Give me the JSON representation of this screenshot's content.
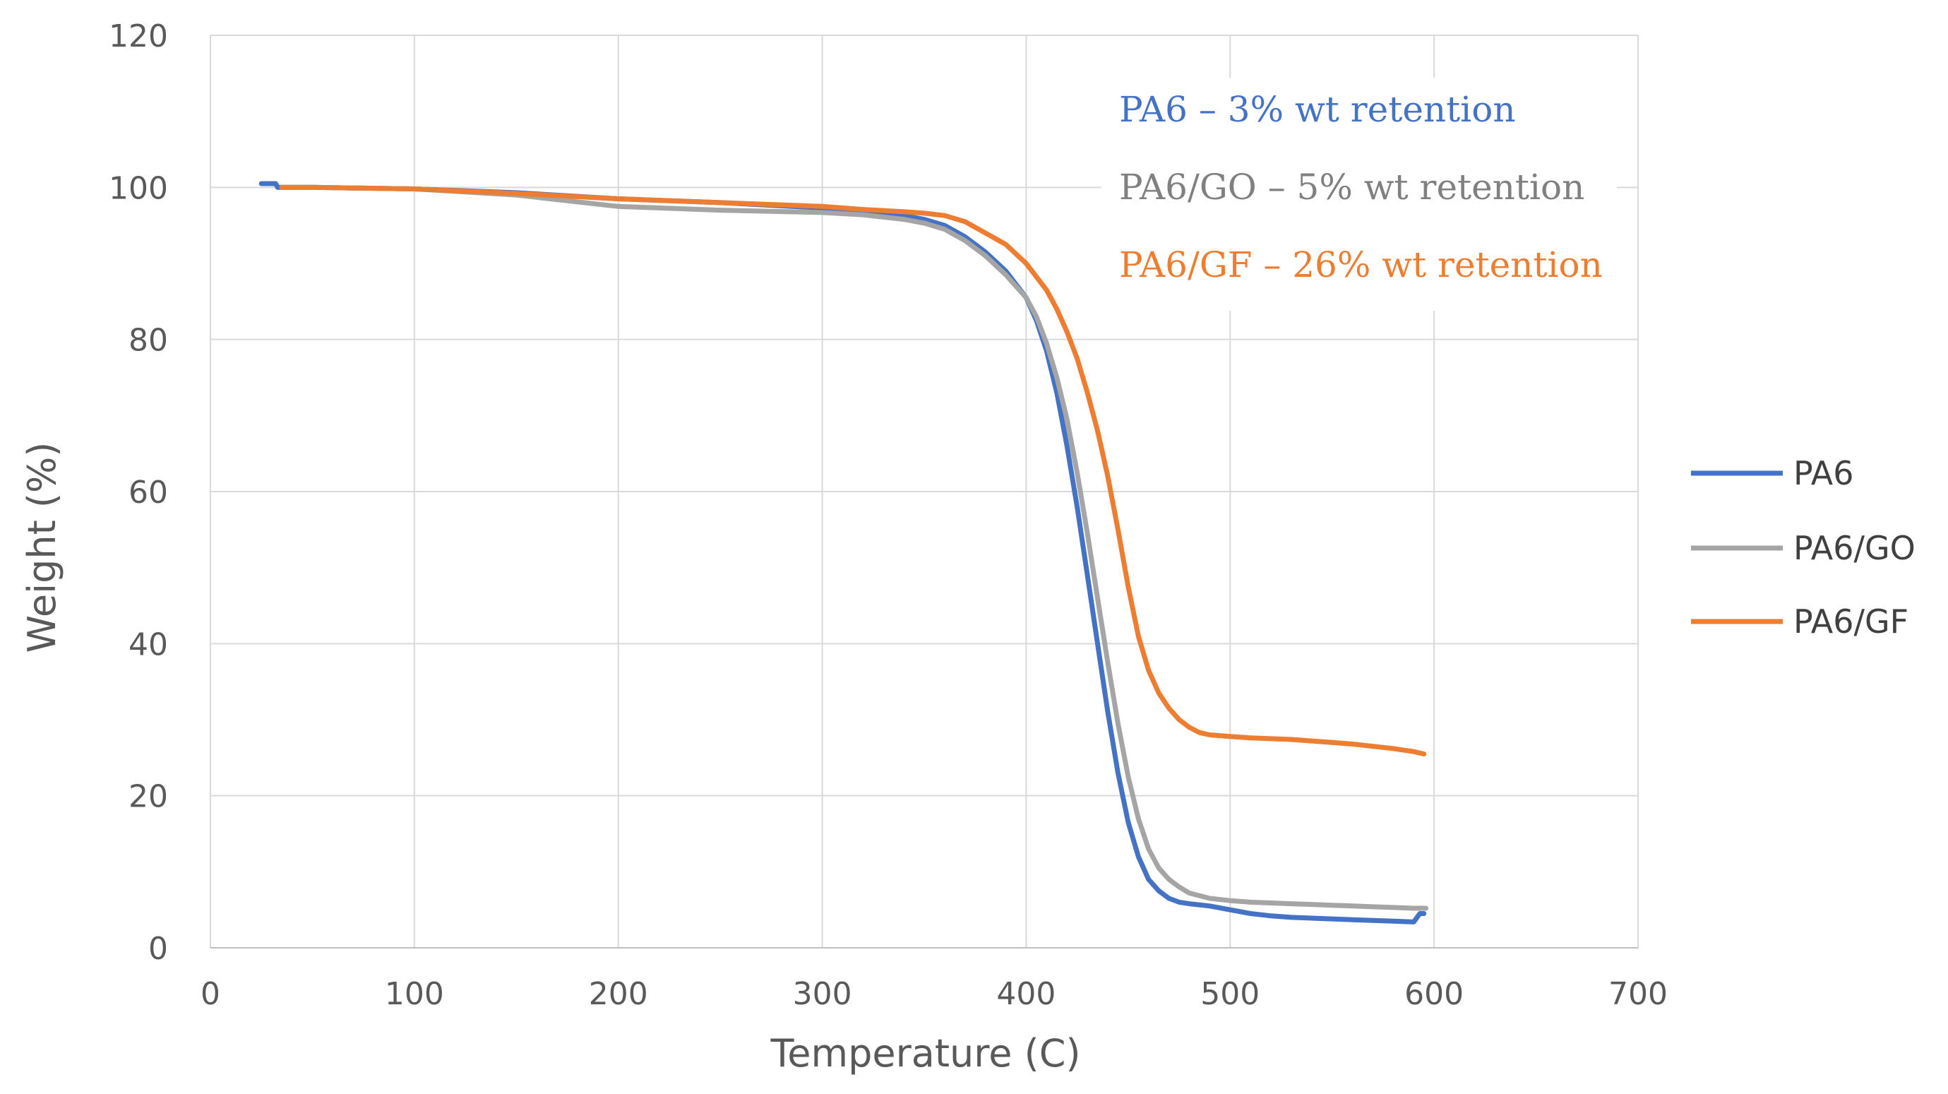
{
  "chart_data": {
    "type": "line",
    "title": "",
    "xlabel": "Temperature (C)",
    "ylabel": "Weight (%)",
    "xlim": [
      0,
      700
    ],
    "ylim": [
      0,
      120
    ],
    "xticks": [
      0,
      100,
      200,
      300,
      400,
      500,
      600,
      700
    ],
    "yticks": [
      0,
      20,
      40,
      60,
      80,
      100,
      120
    ],
    "grid": true,
    "legend_position": "right",
    "series": [
      {
        "name": "PA6",
        "color": "#4472C4",
        "x": [
          25,
          32,
          33,
          50,
          100,
          150,
          200,
          250,
          300,
          320,
          340,
          350,
          360,
          370,
          380,
          390,
          400,
          405,
          410,
          415,
          420,
          425,
          430,
          435,
          440,
          445,
          450,
          455,
          460,
          465,
          470,
          475,
          480,
          490,
          500,
          510,
          520,
          530,
          540,
          550,
          560,
          570,
          580,
          590,
          593,
          595
        ],
        "y": [
          100.5,
          100.5,
          100.0,
          100.0,
          99.8,
          99.3,
          98.5,
          98.0,
          97.3,
          96.8,
          96.3,
          95.8,
          95.0,
          93.5,
          91.5,
          89.0,
          85.5,
          82.5,
          78.5,
          73.0,
          66.0,
          58.0,
          49.0,
          40.0,
          31.0,
          23.0,
          16.5,
          12.0,
          9.0,
          7.5,
          6.5,
          6.0,
          5.8,
          5.5,
          5.0,
          4.5,
          4.2,
          4.0,
          3.9,
          3.8,
          3.7,
          3.6,
          3.5,
          3.4,
          4.5,
          4.5
        ]
      },
      {
        "name": "PA6/GO",
        "color": "#A5A5A5",
        "x": [
          35,
          50,
          100,
          150,
          200,
          250,
          300,
          320,
          340,
          350,
          360,
          370,
          380,
          390,
          400,
          405,
          410,
          415,
          420,
          425,
          430,
          435,
          440,
          445,
          450,
          455,
          460,
          465,
          470,
          475,
          480,
          490,
          500,
          510,
          520,
          530,
          540,
          550,
          560,
          570,
          580,
          590,
          596
        ],
        "y": [
          100.0,
          100.0,
          99.8,
          99.0,
          97.5,
          97.0,
          96.7,
          96.4,
          95.8,
          95.3,
          94.5,
          93.0,
          91.0,
          88.5,
          85.5,
          83.0,
          79.5,
          75.0,
          69.5,
          62.5,
          54.5,
          46.0,
          37.5,
          29.5,
          22.5,
          17.0,
          13.0,
          10.5,
          9.0,
          8.0,
          7.2,
          6.5,
          6.2,
          6.0,
          5.9,
          5.8,
          5.7,
          5.6,
          5.5,
          5.4,
          5.3,
          5.2,
          5.2
        ]
      },
      {
        "name": "PA6/GF",
        "color": "#ED7D31",
        "x": [
          35,
          50,
          100,
          150,
          200,
          250,
          300,
          320,
          340,
          350,
          360,
          370,
          380,
          390,
          400,
          410,
          415,
          420,
          425,
          430,
          435,
          440,
          445,
          450,
          455,
          460,
          465,
          470,
          475,
          480,
          485,
          490,
          500,
          510,
          520,
          530,
          540,
          550,
          560,
          570,
          580,
          590,
          595
        ],
        "y": [
          100.0,
          100.0,
          99.8,
          99.2,
          98.5,
          98.0,
          97.5,
          97.1,
          96.8,
          96.6,
          96.3,
          95.5,
          94.0,
          92.5,
          90.0,
          86.5,
          84.0,
          81.0,
          77.5,
          73.0,
          68.0,
          62.0,
          55.0,
          47.5,
          41.0,
          36.5,
          33.5,
          31.5,
          30.0,
          29.0,
          28.3,
          28.0,
          27.8,
          27.6,
          27.5,
          27.4,
          27.2,
          27.0,
          26.8,
          26.5,
          26.2,
          25.8,
          25.5
        ]
      }
    ],
    "annotations": [
      {
        "text": "PA6 – 3% wt retention",
        "color": "#4472C4"
      },
      {
        "text": "PA6/GO – 5% wt retention",
        "color": "#808080"
      },
      {
        "text": "PA6/GF – 26% wt retention",
        "color": "#ED7D31"
      }
    ]
  }
}
